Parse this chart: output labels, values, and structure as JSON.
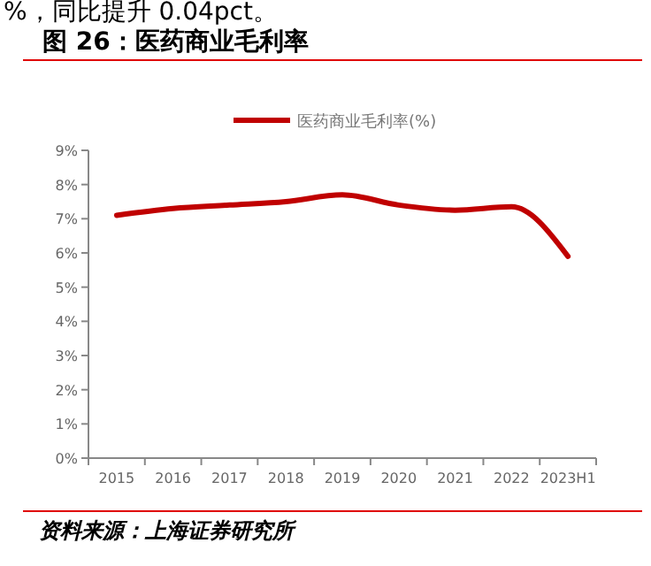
{
  "chart_data": {
    "type": "line",
    "title": "图 26：医药商业毛利率",
    "categories": [
      "2015",
      "2016",
      "2017",
      "2018",
      "2019",
      "2020",
      "2021",
      "2022",
      "2023H1"
    ],
    "series": [
      {
        "name": "医药商业毛利率(%)",
        "color": "#c00000",
        "values": [
          7.1,
          7.3,
          7.4,
          7.5,
          7.7,
          7.4,
          7.25,
          7.35,
          5.9
        ]
      }
    ],
    "ylim": [
      0,
      9
    ],
    "yticks": [
      {
        "value": 0,
        "label": "0%"
      },
      {
        "value": 1,
        "label": "1%"
      },
      {
        "value": 2,
        "label": "2%"
      },
      {
        "value": 3,
        "label": "3%"
      },
      {
        "value": 4,
        "label": "4%"
      },
      {
        "value": 5,
        "label": "5%"
      },
      {
        "value": 6,
        "label": "6%"
      },
      {
        "value": 7,
        "label": "7%"
      },
      {
        "value": 8,
        "label": "8%"
      },
      {
        "value": 9,
        "label": "9%"
      }
    ],
    "grid": false,
    "legend": "top",
    "marker": "none",
    "line_style": "solid",
    "annotations": [
      "%，同比提升 0.04pct。",
      "资料来源：上海证券研究所"
    ]
  }
}
